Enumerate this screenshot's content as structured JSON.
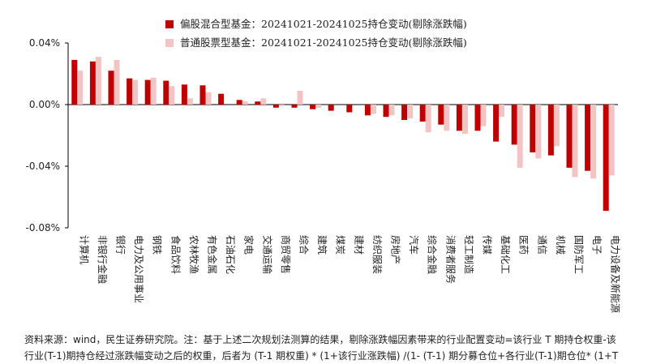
{
  "top_text": "...",
  "legend": [
    {
      "label": "偏股混合型基金：20241021-20241025持仓变动(剔除涨跌幅)",
      "color": "#c00000"
    },
    {
      "label": "普通股票型基金：20241021-20241025持仓变动(剔除涨跌幅)",
      "color": "#f2c4c4"
    }
  ],
  "footnote": "资料来源：wind，民生证券研究院。注：基于上述二次规划法测算的结果，剔除涨跌幅因素带来的行业配置变动=该行业 T 期持仓权重-该行业(T-1)期持仓经过涨跌幅变动之后的权重，后者为 (T-1 期权重) * (1+该行业涨跌幅) /(1- (T-1) 期分募仓位+各行业(T-1)期仓位* (1+T",
  "chart_data": {
    "type": "bar",
    "categories": [
      "计算机",
      "非银行金融",
      "银行",
      "电力及公用事业",
      "钢铁",
      "食品饮料",
      "农林牧渔",
      "有色金属",
      "石油石化",
      "家电",
      "交通运输",
      "商贸零售",
      "综合",
      "建筑",
      "煤炭",
      "建材",
      "纺织服装",
      "房地产",
      "汽车",
      "综合金融",
      "消费者服务",
      "轻工制造",
      "传媒",
      "基础化工",
      "医药",
      "通信",
      "机械",
      "国防军工",
      "电子",
      "电力设备及新能源"
    ],
    "series": [
      {
        "name": "偏股混合型基金：20241021-20241025持仓变动(剔除涨跌幅)",
        "color": "#c00000",
        "values": [
          0.029,
          0.028,
          0.022,
          0.017,
          0.016,
          0.0155,
          0.013,
          0.0125,
          0.007,
          0.003,
          0.002,
          -0.002,
          -0.002,
          -0.003,
          -0.004,
          -0.005,
          -0.007,
          -0.008,
          -0.01,
          -0.011,
          -0.013,
          -0.017,
          -0.017,
          -0.024,
          -0.026,
          -0.031,
          -0.033,
          -0.041,
          -0.043,
          -0.069
        ]
      },
      {
        "name": "普通股票型基金：20241021-20241025持仓变动(剔除涨跌幅)",
        "color": "#f2c4c4",
        "values": [
          0.022,
          0.031,
          0.029,
          0.016,
          0.0175,
          0.012,
          0.004,
          0.008,
          0.0,
          0.002,
          0.004,
          -0.001,
          0.009,
          -0.002,
          0.0,
          0.0,
          -0.006,
          -0.007,
          -0.009,
          -0.018,
          -0.017,
          -0.019,
          -0.014,
          -0.008,
          -0.041,
          -0.035,
          -0.027,
          -0.047,
          -0.048,
          -0.046
        ]
      }
    ],
    "yticks": [
      0.04,
      0.0,
      -0.04,
      -0.08
    ],
    "ytick_labels": [
      "0.04%",
      "0.00%",
      "-0.04%",
      "-0.08%"
    ],
    "ylim": [
      -0.08,
      0.04
    ],
    "grid": false,
    "legend_position": "top-left"
  }
}
